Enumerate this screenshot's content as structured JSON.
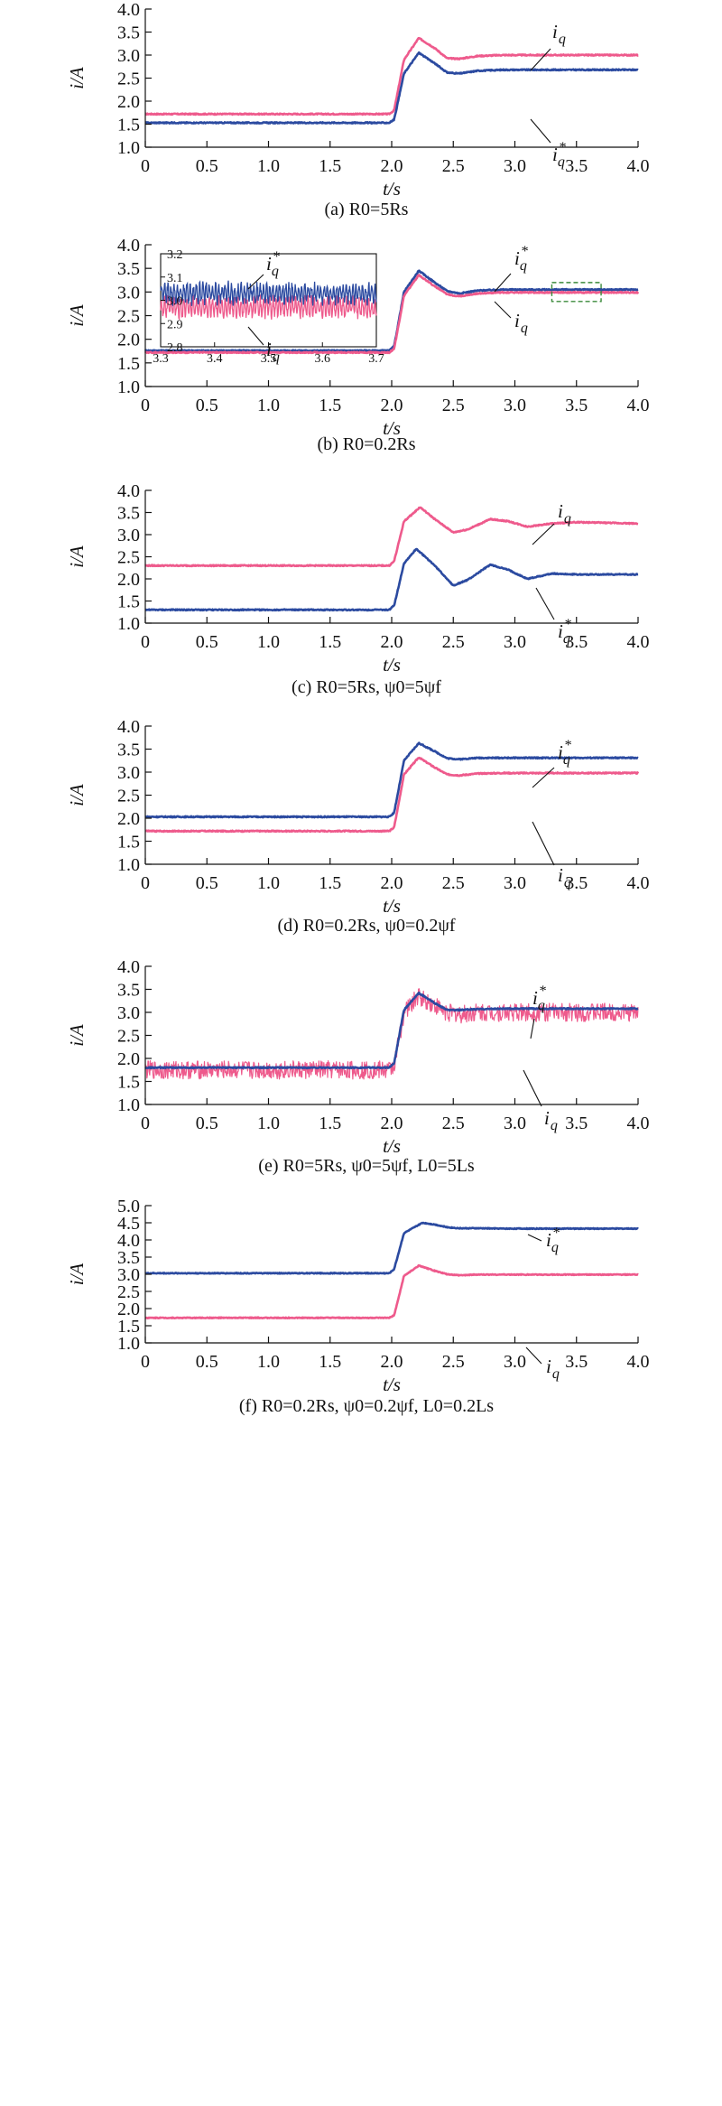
{
  "colors": {
    "iq": "#ee5a8c",
    "iq_ref": "#2b4aa0",
    "inset_box": "#3a8a3a",
    "axis": "#111111"
  },
  "chart_data": [
    {
      "type": "line",
      "caption": "(a) R0=5Rs",
      "xlabel": "t/s",
      "ylabel": "i/A",
      "xlim": [
        0,
        4
      ],
      "ylim": [
        1.0,
        4.0
      ],
      "xticks": [
        "0",
        "0.5",
        "1.0",
        "1.5",
        "2.0",
        "2.5",
        "3.0",
        "3.5",
        "4.0"
      ],
      "yticks": [
        "1.0",
        "1.5",
        "2.0",
        "2.5",
        "3.0",
        "3.5",
        "4.0"
      ],
      "series": [
        {
          "name": "iq",
          "x": [
            0,
            1.98,
            2.02,
            2.1,
            2.22,
            2.35,
            2.45,
            2.55,
            2.7,
            2.9,
            3.2,
            4.0
          ],
          "y": [
            1.72,
            1.72,
            1.8,
            2.9,
            3.37,
            3.15,
            2.93,
            2.92,
            2.98,
            3.0,
            3.0,
            3.0
          ]
        },
        {
          "name": "iq*",
          "x": [
            0,
            1.98,
            2.02,
            2.1,
            2.22,
            2.35,
            2.45,
            2.55,
            2.7,
            2.9,
            3.2,
            4.0
          ],
          "y": [
            1.53,
            1.53,
            1.6,
            2.6,
            3.05,
            2.82,
            2.62,
            2.6,
            2.66,
            2.68,
            2.68,
            2.68
          ]
        }
      ],
      "annotations": [
        {
          "base": "i",
          "sub": "q",
          "sup": ""
        },
        {
          "base": "i",
          "sub": "q",
          "sup": "*"
        }
      ]
    },
    {
      "type": "line",
      "caption": "(b) R0=0.2Rs",
      "xlabel": "t/s",
      "ylabel": "i/A",
      "xlim": [
        0,
        4
      ],
      "ylim": [
        1.0,
        4.0
      ],
      "xticks": [
        "0",
        "0.5",
        "1.0",
        "1.5",
        "2.0",
        "2.5",
        "3.0",
        "3.5",
        "4.0"
      ],
      "yticks": [
        "1.0",
        "1.5",
        "2.0",
        "2.5",
        "3.0",
        "3.5",
        "4.0"
      ],
      "series": [
        {
          "name": "iq*",
          "x": [
            0,
            1.98,
            2.02,
            2.1,
            2.22,
            2.35,
            2.45,
            2.55,
            2.7,
            2.9,
            3.2,
            4.0
          ],
          "y": [
            1.76,
            1.76,
            1.85,
            3.0,
            3.45,
            3.2,
            3.02,
            2.97,
            3.03,
            3.05,
            3.05,
            3.05
          ]
        },
        {
          "name": "iq",
          "x": [
            0,
            1.98,
            2.02,
            2.1,
            2.22,
            2.35,
            2.45,
            2.55,
            2.7,
            2.9,
            3.2,
            4.0
          ],
          "y": [
            1.72,
            1.72,
            1.8,
            2.92,
            3.36,
            3.12,
            2.95,
            2.91,
            2.97,
            2.99,
            2.99,
            2.99
          ]
        }
      ],
      "inset": {
        "xlim": [
          3.3,
          3.7
        ],
        "ylim": [
          2.8,
          3.2
        ],
        "xticks": [
          "3.3",
          "3.4",
          "3.5",
          "3.6",
          "3.7"
        ],
        "yticks": [
          "2.8",
          "2.9",
          "3.0",
          "3.1",
          "3.2"
        ],
        "iq_ref_level": 3.03,
        "iq_level": 2.97
      },
      "annotations": [
        {
          "base": "i",
          "sub": "q",
          "sup": "*"
        },
        {
          "base": "i",
          "sub": "q",
          "sup": ""
        },
        {
          "base": "i",
          "sub": "q",
          "sup": "*"
        },
        {
          "base": "i",
          "sub": "q",
          "sup": ""
        }
      ]
    },
    {
      "type": "line",
      "caption": "(c) R0=5Rs, ψ0=5ψf",
      "xlabel": "t/s",
      "ylabel": "i/A",
      "xlim": [
        0,
        4
      ],
      "ylim": [
        1.0,
        4.0
      ],
      "xticks": [
        "0",
        "0.5",
        "1.0",
        "1.5",
        "2.0",
        "2.5",
        "3.0",
        "3.5",
        "4.0"
      ],
      "yticks": [
        "1.0",
        "1.5",
        "2.0",
        "2.5",
        "3.0",
        "3.5",
        "4.0"
      ],
      "series": [
        {
          "name": "iq",
          "x": [
            0,
            1.98,
            2.02,
            2.1,
            2.23,
            2.35,
            2.5,
            2.62,
            2.8,
            2.95,
            3.1,
            3.3,
            3.5,
            3.7,
            4.0
          ],
          "y": [
            2.3,
            2.3,
            2.4,
            3.3,
            3.62,
            3.35,
            3.05,
            3.12,
            3.35,
            3.3,
            3.18,
            3.25,
            3.28,
            3.27,
            3.25
          ]
        },
        {
          "name": "iq*",
          "x": [
            0,
            1.98,
            2.02,
            2.1,
            2.2,
            2.35,
            2.5,
            2.62,
            2.8,
            2.95,
            3.1,
            3.3,
            3.5,
            3.7,
            4.0
          ],
          "y": [
            1.3,
            1.3,
            1.4,
            2.35,
            2.68,
            2.3,
            1.85,
            1.98,
            2.32,
            2.2,
            2.0,
            2.12,
            2.1,
            2.1,
            2.1
          ]
        }
      ],
      "annotations": [
        {
          "base": "i",
          "sub": "q",
          "sup": ""
        },
        {
          "base": "i",
          "sub": "q",
          "sup": "*"
        }
      ]
    },
    {
      "type": "line",
      "caption": "(d) R0=0.2Rs, ψ0=0.2ψf",
      "xlabel": "t/s",
      "ylabel": "i/A",
      "xlim": [
        0,
        4
      ],
      "ylim": [
        1.0,
        4.0
      ],
      "xticks": [
        "0",
        "0.5",
        "1.0",
        "1.5",
        "2.0",
        "2.5",
        "3.0",
        "3.5",
        "4.0"
      ],
      "yticks": [
        "1.0",
        "1.5",
        "2.0",
        "2.5",
        "3.0",
        "3.5",
        "4.0"
      ],
      "series": [
        {
          "name": "iq*",
          "x": [
            0,
            1.98,
            2.02,
            2.1,
            2.22,
            2.35,
            2.45,
            2.55,
            2.7,
            2.9,
            3.2,
            4.0
          ],
          "y": [
            2.03,
            2.03,
            2.12,
            3.25,
            3.63,
            3.45,
            3.3,
            3.28,
            3.31,
            3.31,
            3.31,
            3.31
          ]
        },
        {
          "name": "iq",
          "x": [
            0,
            1.98,
            2.02,
            2.1,
            2.22,
            2.35,
            2.45,
            2.55,
            2.7,
            2.9,
            3.2,
            4.0
          ],
          "y": [
            1.72,
            1.72,
            1.8,
            2.95,
            3.32,
            3.1,
            2.95,
            2.93,
            2.97,
            2.98,
            2.98,
            2.98
          ]
        }
      ],
      "annotations": [
        {
          "base": "i",
          "sub": "q",
          "sup": "*"
        },
        {
          "base": "i",
          "sub": "q",
          "sup": ""
        }
      ]
    },
    {
      "type": "line",
      "caption": "(e) R0=5Rs, ψ0=5ψf, L0=5Ls",
      "xlabel": "t/s",
      "ylabel": "i/A",
      "xlim": [
        0,
        4
      ],
      "ylim": [
        1.0,
        4.0
      ],
      "xticks": [
        "0",
        "0.5",
        "1.0",
        "1.5",
        "2.0",
        "2.5",
        "3.0",
        "3.5",
        "4.0"
      ],
      "yticks": [
        "1.0",
        "1.5",
        "2.0",
        "2.5",
        "3.0",
        "3.5",
        "4.0"
      ],
      "series": [
        {
          "name": "iq",
          "noise": 0.2,
          "x": [
            0,
            1.98,
            2.02,
            2.1,
            2.22,
            2.35,
            2.45,
            2.55,
            2.7,
            2.9,
            3.2,
            4.0
          ],
          "y": [
            1.75,
            1.75,
            1.85,
            3.0,
            3.35,
            3.15,
            3.0,
            2.95,
            3.0,
            3.0,
            3.0,
            3.0
          ]
        },
        {
          "name": "iq*",
          "x": [
            0,
            1.98,
            2.02,
            2.1,
            2.22,
            2.35,
            2.45,
            2.55,
            2.7,
            2.9,
            3.2,
            4.0
          ],
          "y": [
            1.8,
            1.8,
            1.9,
            3.05,
            3.42,
            3.2,
            3.05,
            3.05,
            3.07,
            3.08,
            3.08,
            3.08
          ]
        }
      ],
      "annotations": [
        {
          "base": "i",
          "sub": "q",
          "sup": "*"
        },
        {
          "base": "i",
          "sub": "q",
          "sup": ""
        }
      ]
    },
    {
      "type": "line",
      "caption": "(f) R0=0.2Rs, ψ0=0.2ψf, L0=0.2Ls",
      "xlabel": "t/s",
      "ylabel": "i/A",
      "xlim": [
        0,
        4
      ],
      "ylim": [
        1.0,
        5.0
      ],
      "xticks": [
        "0",
        "0.5",
        "1.0",
        "1.5",
        "2.0",
        "2.5",
        "3.0",
        "3.5",
        "4.0"
      ],
      "yticks": [
        "1.0",
        "1.5",
        "2.0",
        "2.5",
        "3.0",
        "3.5",
        "4.0",
        "4.5",
        "5.0"
      ],
      "series": [
        {
          "name": "iq*",
          "x": [
            0,
            1.98,
            2.02,
            2.1,
            2.25,
            2.35,
            2.45,
            2.55,
            2.7,
            2.9,
            3.2,
            4.0
          ],
          "y": [
            3.03,
            3.03,
            3.15,
            4.2,
            4.5,
            4.45,
            4.37,
            4.34,
            4.34,
            4.33,
            4.33,
            4.33
          ]
        },
        {
          "name": "iq",
          "x": [
            0,
            1.98,
            2.02,
            2.1,
            2.22,
            2.35,
            2.45,
            2.55,
            2.7,
            2.9,
            3.2,
            4.0
          ],
          "y": [
            1.73,
            1.73,
            1.8,
            2.95,
            3.25,
            3.1,
            3.0,
            2.97,
            2.99,
            2.99,
            2.99,
            2.99
          ]
        }
      ],
      "annotations": [
        {
          "base": "i",
          "sub": "q",
          "sup": "*"
        },
        {
          "base": "i",
          "sub": "q",
          "sup": ""
        }
      ]
    }
  ]
}
